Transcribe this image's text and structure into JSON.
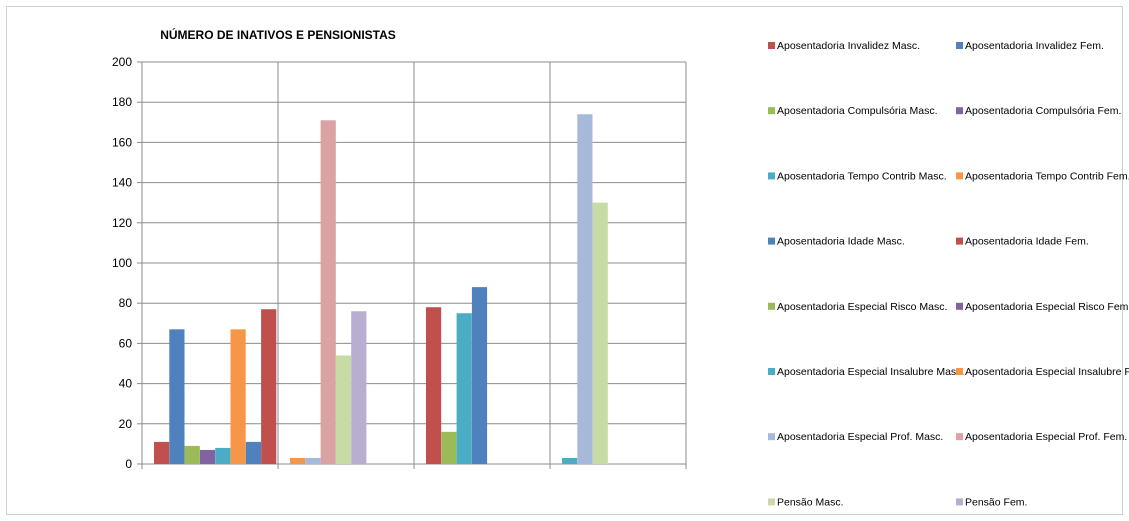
{
  "chart_data": {
    "type": "bar",
    "title": "NÚMERO DE INATIVOS E PENSIONISTAS",
    "xlabel": "",
    "ylabel": "",
    "ylim": [
      0,
      200
    ],
    "yticks": [
      0,
      20,
      40,
      60,
      80,
      100,
      120,
      140,
      160,
      180,
      200
    ],
    "categories": [
      "",
      "",
      "",
      ""
    ],
    "grid": true,
    "legend_position": "right",
    "series": [
      {
        "name": "Aposentadoria Invalidez Masc.",
        "color": "#C0504D",
        "values": [
          11,
          0,
          78,
          0
        ]
      },
      {
        "name": "Aposentadoria Invalidez Fem.",
        "color": "#4F81BD",
        "values": [
          67,
          0,
          0,
          0
        ]
      },
      {
        "name": "Aposentadoria Compulsória Masc.",
        "color": "#9BBB59",
        "values": [
          9,
          0,
          16,
          0
        ]
      },
      {
        "name": "Aposentadoria Compulsória Fem.",
        "color": "#8064A2",
        "values": [
          7,
          0,
          0,
          0
        ]
      },
      {
        "name": "Aposentadoria Tempo Contrib Masc.",
        "color": "#4BACC6",
        "values": [
          8,
          0,
          75,
          0
        ]
      },
      {
        "name": "Aposentadoria Tempo Contrib Fem.",
        "color": "#F79646",
        "values": [
          67,
          0,
          0,
          0
        ]
      },
      {
        "name": "Aposentadoria Idade Masc.",
        "color": "#4F81BD",
        "values": [
          11,
          0,
          88,
          0
        ]
      },
      {
        "name": "Aposentadoria Idade Fem.",
        "color": "#C0504D",
        "values": [
          77,
          0,
          0,
          0
        ]
      },
      {
        "name": "Aposentadoria Especial Risco Masc.",
        "color": "#9BBB59",
        "values": [
          0,
          0,
          0,
          0
        ]
      },
      {
        "name": "Aposentadoria Especial Risco Fem.",
        "color": "#8064A2",
        "values": [
          0,
          0,
          0,
          0
        ]
      },
      {
        "name": "Aposentadoria Especial Insalubre Masc.",
        "color": "#4BACC6",
        "values": [
          0,
          0,
          0,
          3
        ]
      },
      {
        "name": "Aposentadoria Especial Insalubre Fem.",
        "color": "#F79646",
        "values": [
          0,
          3,
          0,
          0
        ]
      },
      {
        "name": "Aposentadoria Especial Prof. Masc.",
        "color": "#A6B9DB",
        "values": [
          0,
          3,
          0,
          174
        ]
      },
      {
        "name": "Aposentadoria Especial Prof. Fem.",
        "color": "#D9A3A3",
        "values": [
          0,
          171,
          0,
          0
        ]
      },
      {
        "name": "Pensão Masc.",
        "color": "#C9DBA5",
        "values": [
          0,
          54,
          0,
          130
        ]
      },
      {
        "name": "Pensão Fem.",
        "color": "#B8AED0",
        "values": [
          0,
          76,
          0,
          0
        ]
      }
    ]
  }
}
